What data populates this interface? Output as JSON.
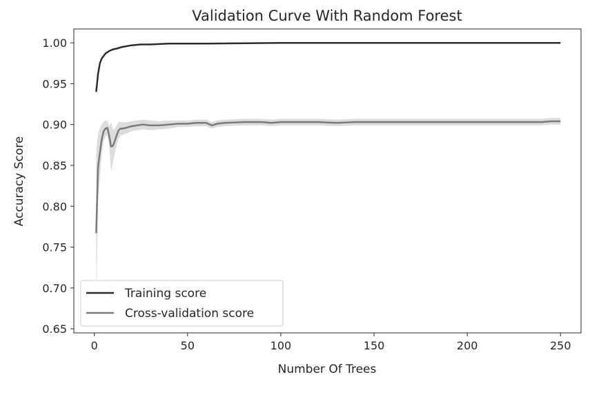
{
  "chart_data": {
    "type": "line",
    "title": "Validation Curve With Random Forest",
    "xlabel": "Number Of Trees",
    "ylabel": "Accuracy Score",
    "xlim": [
      -11,
      261
    ],
    "ylim": [
      0.645,
      1.017
    ],
    "xticks": [
      0,
      50,
      100,
      150,
      200,
      250
    ],
    "yticks": [
      0.65,
      0.7,
      0.75,
      0.8,
      0.85,
      0.9,
      0.95,
      1.0
    ],
    "ytick_labels": [
      "0.65",
      "0.70",
      "0.75",
      "0.80",
      "0.85",
      "0.90",
      "0.95",
      "1.00"
    ],
    "grid": false,
    "legend_position": "lower-left",
    "series": [
      {
        "name": "Training score",
        "color": "#2b2b2b",
        "x": [
          1,
          2,
          3,
          4,
          5,
          6,
          8,
          10,
          12,
          15,
          20,
          25,
          30,
          40,
          60,
          100,
          150,
          200,
          250
        ],
        "y": [
          0.94,
          0.962,
          0.975,
          0.981,
          0.984,
          0.987,
          0.99,
          0.992,
          0.993,
          0.995,
          0.997,
          0.998,
          0.998,
          0.999,
          0.999,
          1.0,
          1.0,
          1.0,
          1.0
        ]
      },
      {
        "name": "Cross-validation score",
        "color": "#7a7a7a",
        "band_color": "#dcdcdc",
        "x": [
          1,
          2,
          3,
          4,
          5,
          6,
          7,
          8,
          9,
          10,
          11,
          12,
          13,
          14,
          15,
          17,
          20,
          23,
          26,
          30,
          35,
          40,
          45,
          50,
          55,
          60,
          63,
          66,
          70,
          80,
          90,
          95,
          100,
          110,
          120,
          130,
          140,
          150,
          160,
          170,
          180,
          190,
          200,
          210,
          220,
          230,
          240,
          245,
          250
        ],
        "y": [
          0.767,
          0.848,
          0.866,
          0.882,
          0.892,
          0.895,
          0.896,
          0.886,
          0.873,
          0.874,
          0.88,
          0.887,
          0.893,
          0.895,
          0.895,
          0.896,
          0.898,
          0.899,
          0.9,
          0.899,
          0.899,
          0.9,
          0.901,
          0.901,
          0.902,
          0.902,
          0.899,
          0.901,
          0.902,
          0.903,
          0.903,
          0.902,
          0.903,
          0.903,
          0.903,
          0.902,
          0.903,
          0.903,
          0.903,
          0.903,
          0.903,
          0.903,
          0.903,
          0.903,
          0.903,
          0.903,
          0.903,
          0.904,
          0.904
        ],
        "std": [
          0.1,
          0.04,
          0.03,
          0.018,
          0.012,
          0.01,
          0.009,
          0.012,
          0.03,
          0.02,
          0.015,
          0.012,
          0.01,
          0.008,
          0.008,
          0.007,
          0.006,
          0.006,
          0.006,
          0.006,
          0.005,
          0.005,
          0.004,
          0.004,
          0.004,
          0.004,
          0.004,
          0.004,
          0.004,
          0.004,
          0.004,
          0.004,
          0.004,
          0.004,
          0.004,
          0.004,
          0.004,
          0.004,
          0.004,
          0.004,
          0.004,
          0.004,
          0.004,
          0.004,
          0.004,
          0.004,
          0.004,
          0.004,
          0.004
        ]
      }
    ]
  }
}
